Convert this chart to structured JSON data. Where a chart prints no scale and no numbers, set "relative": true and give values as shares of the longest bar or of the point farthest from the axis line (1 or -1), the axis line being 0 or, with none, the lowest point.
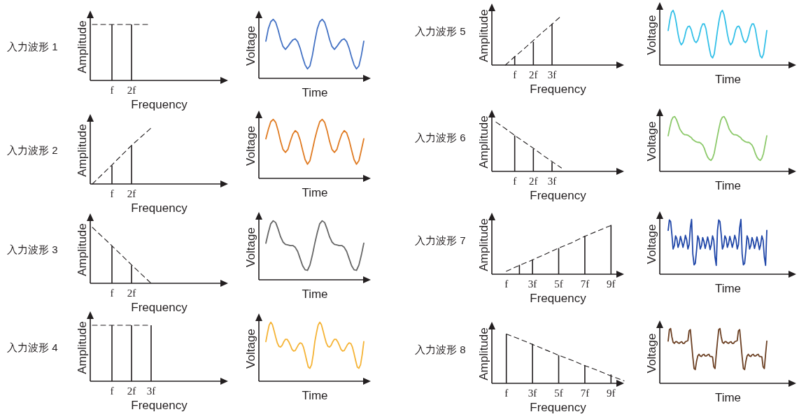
{
  "chart_data": [
    {
      "type": "bar",
      "title": "入力波形 1",
      "xlabel": "Frequency",
      "ylabel": "Amplitude",
      "relative": true,
      "tick_labels": "x",
      "categories": [
        null,
        "f",
        "2f",
        null,
        null,
        null,
        null
      ],
      "series": [
        {
          "type": "bar",
          "values": [
            null,
            1,
            1,
            null,
            null,
            null,
            null
          ],
          "color": "#231f20"
        },
        {
          "type": "line",
          "values": [
            1,
            1,
            1,
            1,
            null,
            null,
            null
          ],
          "color": "#231f20",
          "line_style": "dashed"
        }
      ]
    },
    {
      "type": "line",
      "xlabel": "Time",
      "ylabel": "Voltage",
      "relative": true,
      "tick_labels": false,
      "categories": [
        null,
        null,
        null,
        null,
        null,
        null,
        null,
        null,
        null,
        null,
        null,
        null,
        null,
        null,
        null,
        null,
        null,
        null,
        null,
        null,
        null,
        null,
        null,
        null,
        null,
        null,
        null,
        null,
        null,
        null,
        null,
        null,
        null,
        null,
        null,
        null,
        null,
        null,
        null,
        null,
        null
      ],
      "series": [
        {
          "color": "#4472c4",
          "values": [
            0.63,
            0.84,
            0.96,
            1,
            0.95,
            0.82,
            0.66,
            0.54,
            0.49,
            0.54,
            0.6,
            0.65,
            0.67,
            0.62,
            0.51,
            0.36,
            0.23,
            0.16,
            0.21,
            0.39,
            0.63,
            0.84,
            0.96,
            1,
            0.95,
            0.82,
            0.66,
            0.54,
            0.49,
            0.54,
            0.6,
            0.65,
            0.67,
            0.62,
            0.51,
            0.36,
            0.23,
            0.16,
            0.21,
            0.39,
            0.63
          ]
        }
      ]
    },
    {
      "type": "bar",
      "title": "入力波形 2",
      "xlabel": "Frequency",
      "ylabel": "Amplitude",
      "relative": true,
      "tick_labels": "x",
      "categories": [
        null,
        "f",
        "2f",
        null,
        null,
        null,
        null
      ],
      "series": [
        {
          "type": "bar",
          "values": [
            null,
            0.33,
            0.69,
            null,
            null,
            null,
            null
          ],
          "color": "#231f20"
        },
        {
          "type": "line",
          "values": [
            0,
            0.34,
            0.69,
            1,
            null,
            null,
            null
          ],
          "color": "#231f20",
          "line_style": "dashed"
        }
      ]
    },
    {
      "type": "line",
      "xlabel": "Time",
      "ylabel": "Voltage",
      "relative": true,
      "tick_labels": false,
      "categories": [
        null,
        null,
        null,
        null,
        null,
        null,
        null,
        null,
        null,
        null,
        null,
        null,
        null,
        null,
        null,
        null,
        null,
        null,
        null,
        null,
        null,
        null,
        null,
        null,
        null,
        null,
        null,
        null,
        null,
        null,
        null,
        null,
        null,
        null,
        null,
        null,
        null,
        null,
        null,
        null,
        null
      ],
      "series": [
        {
          "color": "#e07b22",
          "values": [
            0.67,
            0.83,
            0.96,
            1,
            0.95,
            0.81,
            0.63,
            0.49,
            0.44,
            0.49,
            0.63,
            0.75,
            0.81,
            0.77,
            0.65,
            0.48,
            0.32,
            0.24,
            0.3,
            0.48,
            0.67,
            0.83,
            0.96,
            1,
            0.95,
            0.81,
            0.63,
            0.49,
            0.44,
            0.49,
            0.63,
            0.75,
            0.81,
            0.77,
            0.65,
            0.48,
            0.32,
            0.24,
            0.3,
            0.48,
            0.67
          ]
        }
      ]
    },
    {
      "type": "bar",
      "title": "入力波形 3",
      "xlabel": "Frequency",
      "ylabel": "Amplitude",
      "relative": true,
      "tick_labels": "x",
      "categories": [
        null,
        "f",
        "2f",
        null,
        null,
        null,
        null
      ],
      "series": [
        {
          "type": "bar",
          "values": [
            null,
            0.67,
            0.32,
            null,
            null,
            null,
            null
          ],
          "color": "#231f20"
        },
        {
          "type": "line",
          "values": [
            1,
            0.67,
            0.33,
            0,
            null,
            null,
            null
          ],
          "color": "#231f20",
          "line_style": "dashed"
        }
      ]
    },
    {
      "type": "line",
      "xlabel": "Time",
      "ylabel": "Voltage",
      "relative": true,
      "tick_labels": false,
      "categories": [
        null,
        null,
        null,
        null,
        null,
        null,
        null,
        null,
        null,
        null,
        null,
        null,
        null,
        null,
        null,
        null,
        null,
        null,
        null,
        null,
        null,
        null,
        null,
        null,
        null,
        null,
        null,
        null,
        null,
        null,
        null,
        null,
        null,
        null,
        null,
        null,
        null,
        null,
        null,
        null,
        null
      ],
      "series": [
        {
          "color": "#666666",
          "values": [
            0.62,
            0.8,
            0.95,
            1,
            0.97,
            0.86,
            0.73,
            0.64,
            0.6,
            0.59,
            0.58,
            0.58,
            0.55,
            0.48,
            0.36,
            0.24,
            0.17,
            0.16,
            0.25,
            0.42,
            0.62,
            0.8,
            0.95,
            1,
            0.97,
            0.86,
            0.73,
            0.64,
            0.6,
            0.59,
            0.58,
            0.58,
            0.55,
            0.48,
            0.36,
            0.24,
            0.17,
            0.16,
            0.25,
            0.42,
            0.62
          ]
        }
      ]
    },
    {
      "type": "bar",
      "title": "入力波形 4",
      "xlabel": "Frequency",
      "ylabel": "Amplitude",
      "relative": true,
      "tick_labels": "x",
      "categories": [
        null,
        "f",
        "2f",
        "3f",
        null,
        null,
        null
      ],
      "series": [
        {
          "type": "bar",
          "values": [
            null,
            1,
            1,
            1,
            null,
            null,
            null
          ],
          "color": "#231f20"
        },
        {
          "type": "line",
          "values": [
            1,
            1,
            1,
            1,
            null,
            null,
            null
          ],
          "color": "#231f20",
          "line_style": "dashed"
        }
      ]
    },
    {
      "type": "line",
      "xlabel": "Time",
      "ylabel": "Voltage",
      "relative": true,
      "tick_labels": false,
      "categories": [
        null,
        null,
        null,
        null,
        null,
        null,
        null,
        null,
        null,
        null,
        null,
        null,
        null,
        null,
        null,
        null,
        null,
        null,
        null,
        null,
        null,
        null,
        null,
        null,
        null,
        null,
        null,
        null,
        null,
        null,
        null,
        null,
        null,
        null,
        null,
        null,
        null,
        null,
        null,
        null,
        null,
        null,
        null,
        null,
        null,
        null,
        null,
        null,
        null,
        null,
        null,
        null,
        null,
        null,
        null,
        null,
        null,
        null,
        null,
        null,
        null
      ],
      "series": [
        {
          "color": "#f5b335",
          "values": [
            0.67,
            0.82,
            0.95,
            1,
            0.96,
            0.86,
            0.75,
            0.65,
            0.59,
            0.58,
            0.61,
            0.67,
            0.71,
            0.71,
            0.67,
            0.61,
            0.54,
            0.51,
            0.52,
            0.57,
            0.62,
            0.65,
            0.64,
            0.58,
            0.47,
            0.35,
            0.24,
            0.22,
            0.28,
            0.45,
            0.67,
            0.82,
            0.95,
            1,
            0.96,
            0.86,
            0.75,
            0.65,
            0.59,
            0.58,
            0.61,
            0.67,
            0.71,
            0.71,
            0.67,
            0.61,
            0.54,
            0.51,
            0.52,
            0.57,
            0.62,
            0.65,
            0.64,
            0.58,
            0.47,
            0.35,
            0.24,
            0.22,
            0.28,
            0.45,
            0.67
          ]
        }
      ]
    },
    {
      "type": "bar",
      "title": "入力波形 5",
      "xlabel": "Frequency",
      "ylabel": "Amplitude",
      "relative": true,
      "tick_labels": "x",
      "categories": [
        null,
        null,
        "f",
        null,
        "2f",
        null,
        "3f",
        null,
        null,
        null,
        null,
        null,
        null
      ],
      "series": [
        {
          "type": "bar",
          "values": [
            null,
            null,
            0.18,
            null,
            0.47,
            null,
            0.84,
            null,
            null,
            null,
            null,
            null,
            null
          ],
          "color": "#231f20"
        },
        {
          "type": "line",
          "values": [
            null,
            0,
            0.17,
            0.33,
            0.5,
            0.67,
            0.83,
            1,
            null,
            null,
            null,
            null,
            null
          ],
          "color": "#231f20",
          "line_style": "dashed"
        }
      ]
    },
    {
      "type": "line",
      "xlabel": "Time",
      "ylabel": "Voltage",
      "relative": true,
      "tick_labels": false,
      "categories": [
        null,
        null,
        null,
        null,
        null,
        null,
        null,
        null,
        null,
        null,
        null,
        null,
        null,
        null,
        null,
        null,
        null,
        null,
        null,
        null,
        null,
        null,
        null,
        null,
        null,
        null,
        null,
        null,
        null,
        null,
        null,
        null,
        null,
        null,
        null,
        null,
        null,
        null,
        null,
        null,
        null,
        null,
        null,
        null,
        null,
        null,
        null,
        null,
        null,
        null,
        null,
        null,
        null,
        null,
        null,
        null,
        null,
        null,
        null,
        null,
        null
      ],
      "series": [
        {
          "color": "#33c0e8",
          "values": [
            0.63,
            0.82,
            0.96,
            1,
            0.92,
            0.76,
            0.57,
            0.43,
            0.37,
            0.41,
            0.51,
            0.64,
            0.7,
            0.71,
            0.65,
            0.53,
            0.44,
            0.41,
            0.45,
            0.55,
            0.68,
            0.75,
            0.75,
            0.66,
            0.48,
            0.31,
            0.17,
            0.13,
            0.2,
            0.41,
            0.63,
            0.82,
            0.96,
            1,
            0.92,
            0.76,
            0.57,
            0.43,
            0.37,
            0.41,
            0.51,
            0.64,
            0.7,
            0.71,
            0.65,
            0.53,
            0.44,
            0.41,
            0.45,
            0.55,
            0.68,
            0.75,
            0.75,
            0.66,
            0.48,
            0.31,
            0.17,
            0.13,
            0.2,
            0.41,
            0.63
          ]
        }
      ]
    },
    {
      "type": "bar",
      "title": "入力波形 6",
      "xlabel": "Frequency",
      "ylabel": "Amplitude",
      "relative": true,
      "tick_labels": "x",
      "categories": [
        null,
        null,
        "f",
        null,
        "2f",
        null,
        "3f",
        null,
        null,
        null,
        null,
        null,
        null
      ],
      "series": [
        {
          "type": "bar",
          "values": [
            null,
            null,
            0.73,
            null,
            0.46,
            null,
            0.19,
            null,
            null,
            null,
            null,
            null,
            null
          ],
          "color": "#231f20"
        },
        {
          "type": "line",
          "values": [
            1,
            0.87,
            0.73,
            0.6,
            0.47,
            0.33,
            0.2,
            0.07,
            null,
            null,
            null,
            null,
            null
          ],
          "color": "#231f20",
          "line_style": "dashed"
        }
      ]
    },
    {
      "type": "line",
      "xlabel": "Time",
      "ylabel": "Voltage",
      "relative": true,
      "tick_labels": false,
      "categories": [
        null,
        null,
        null,
        null,
        null,
        null,
        null,
        null,
        null,
        null,
        null,
        null,
        null,
        null,
        null,
        null,
        null,
        null,
        null,
        null,
        null,
        null,
        null,
        null,
        null,
        null,
        null,
        null,
        null,
        null,
        null,
        null,
        null,
        null,
        null,
        null,
        null,
        null,
        null,
        null,
        null,
        null,
        null,
        null,
        null,
        null,
        null,
        null,
        null,
        null,
        null,
        null,
        null,
        null,
        null,
        null,
        null,
        null,
        null,
        null,
        null
      ],
      "series": [
        {
          "color": "#8cc96a",
          "values": [
            0.65,
            0.8,
            0.93,
            0.99,
            1,
            0.95,
            0.87,
            0.78,
            0.73,
            0.69,
            0.67,
            0.67,
            0.66,
            0.64,
            0.62,
            0.58,
            0.56,
            0.54,
            0.53,
            0.53,
            0.51,
            0.48,
            0.42,
            0.33,
            0.26,
            0.22,
            0.2,
            0.24,
            0.33,
            0.49,
            0.65,
            0.8,
            0.93,
            0.99,
            1,
            0.95,
            0.87,
            0.78,
            0.73,
            0.69,
            0.67,
            0.67,
            0.66,
            0.64,
            0.62,
            0.58,
            0.56,
            0.54,
            0.53,
            0.53,
            0.51,
            0.48,
            0.42,
            0.33,
            0.26,
            0.22,
            0.2,
            0.24,
            0.33,
            0.49,
            0.65
          ]
        }
      ]
    },
    {
      "type": "bar",
      "title": "入力波形 7",
      "xlabel": "Frequency",
      "ylabel": "Amplitude",
      "relative": true,
      "tick_labels": "x",
      "categories": [
        null,
        "f",
        null,
        "3f",
        null,
        "5f",
        null,
        "7f",
        null,
        "9f",
        null
      ],
      "series": [
        {
          "type": "bar",
          "values": [
            null,
            null,
            0.19,
            0.3,
            null,
            0.53,
            null,
            0.78,
            null,
            1,
            null
          ],
          "color": "#231f20"
        },
        {
          "type": "line",
          "values": [
            null,
            0.06,
            0.18,
            0.29,
            0.41,
            0.53,
            0.64,
            0.77,
            0.88,
            0.99,
            null
          ],
          "color": "#231f20",
          "line_style": "dashed"
        }
      ]
    },
    {
      "type": "line",
      "xlabel": "Time",
      "ylabel": "Voltage",
      "relative": true,
      "tick_labels": false,
      "categories": [
        null,
        null,
        null,
        null,
        null,
        null,
        null,
        null,
        null,
        null,
        null,
        null,
        null,
        null,
        null,
        null,
        null,
        null,
        null,
        null,
        null,
        null,
        null,
        null,
        null,
        null,
        null,
        null,
        null,
        null,
        null,
        null,
        null,
        null,
        null,
        null,
        null,
        null,
        null,
        null,
        null,
        null,
        null,
        null,
        null,
        null,
        null,
        null,
        null,
        null,
        null,
        null,
        null,
        null,
        null,
        null,
        null,
        null,
        null,
        null,
        null,
        null,
        null,
        null,
        null,
        null,
        null,
        null,
        null,
        null,
        null,
        null,
        null,
        null,
        null,
        null,
        null,
        null,
        null,
        null,
        null
      ],
      "series": [
        {
          "color": "#1f46a8",
          "values": [
            0.8,
            0.99,
            0.96,
            0.73,
            0.46,
            0.52,
            0.7,
            0.65,
            0.49,
            0.56,
            0.69,
            0.6,
            0.49,
            0.58,
            0.71,
            0.63,
            0.46,
            0.54,
            0.85,
            1,
            0.37,
            0.17,
            0.2,
            0.43,
            0.7,
            0.64,
            0.46,
            0.52,
            0.67,
            0.6,
            0.47,
            0.56,
            0.68,
            0.58,
            0.45,
            0.54,
            0.7,
            0.62,
            0.31,
            0.16,
            0.8,
            0.99,
            0.96,
            0.73,
            0.46,
            0.52,
            0.7,
            0.65,
            0.49,
            0.56,
            0.69,
            0.6,
            0.49,
            0.58,
            0.71,
            0.63,
            0.46,
            0.54,
            0.85,
            1,
            0.37,
            0.17,
            0.2,
            0.43,
            0.7,
            0.64,
            0.46,
            0.52,
            0.67,
            0.6,
            0.47,
            0.56,
            0.68,
            0.58,
            0.45,
            0.54,
            0.7,
            0.62,
            0.31,
            0.16,
            0.8
          ]
        }
      ]
    },
    {
      "type": "bar",
      "title": "入力波形 8",
      "xlabel": "Frequency",
      "ylabel": "Amplitude",
      "relative": true,
      "tick_labels": "x",
      "categories": [
        null,
        "f",
        null,
        "3f",
        null,
        "5f",
        null,
        "7f",
        null,
        "9f",
        null
      ],
      "series": [
        {
          "type": "bar",
          "values": [
            null,
            1,
            null,
            0.8,
            null,
            0.57,
            null,
            0.37,
            null,
            0.18,
            null
          ],
          "color": "#231f20"
        },
        {
          "type": "line",
          "values": [
            null,
            1,
            0.9,
            0.79,
            0.68,
            0.57,
            0.47,
            0.36,
            0.26,
            0.15,
            0.05
          ],
          "color": "#231f20",
          "line_style": "dashed"
        }
      ]
    },
    {
      "type": "line",
      "xlabel": "Time",
      "ylabel": "Voltage",
      "relative": true,
      "tick_labels": false,
      "categories": [
        null,
        null,
        null,
        null,
        null,
        null,
        null,
        null,
        null,
        null,
        null,
        null,
        null,
        null,
        null,
        null,
        null,
        null,
        null,
        null,
        null,
        null,
        null,
        null,
        null,
        null,
        null,
        null,
        null,
        null,
        null,
        null,
        null,
        null,
        null,
        null,
        null,
        null,
        null,
        null,
        null,
        null,
        null,
        null,
        null,
        null,
        null,
        null,
        null,
        null,
        null,
        null,
        null,
        null,
        null,
        null,
        null,
        null,
        null,
        null,
        null,
        null,
        null,
        null,
        null,
        null,
        null,
        null,
        null,
        null,
        null,
        null,
        null,
        null,
        null,
        null,
        null,
        null,
        null,
        null,
        null
      ],
      "series": [
        {
          "color": "#6b3f22",
          "values": [
            0.77,
            0.98,
            1,
            0.85,
            0.75,
            0.73,
            0.76,
            0.76,
            0.74,
            0.73,
            0.75,
            0.76,
            0.73,
            0.73,
            0.76,
            0.77,
            0.78,
            0.96,
            0.98,
            0.73,
            0.48,
            0.27,
            0.25,
            0.4,
            0.5,
            0.53,
            0.5,
            0.49,
            0.52,
            0.53,
            0.5,
            0.5,
            0.52,
            0.53,
            0.49,
            0.49,
            0.48,
            0.3,
            0.27,
            0.53,
            0.77,
            0.98,
            1,
            0.85,
            0.75,
            0.73,
            0.76,
            0.76,
            0.74,
            0.73,
            0.75,
            0.76,
            0.73,
            0.73,
            0.76,
            0.77,
            0.78,
            0.96,
            0.98,
            0.73,
            0.48,
            0.27,
            0.25,
            0.4,
            0.5,
            0.53,
            0.5,
            0.49,
            0.52,
            0.53,
            0.5,
            0.5,
            0.52,
            0.53,
            0.49,
            0.49,
            0.48,
            0.3,
            0.27,
            0.53,
            0.77
          ]
        }
      ]
    }
  ]
}
